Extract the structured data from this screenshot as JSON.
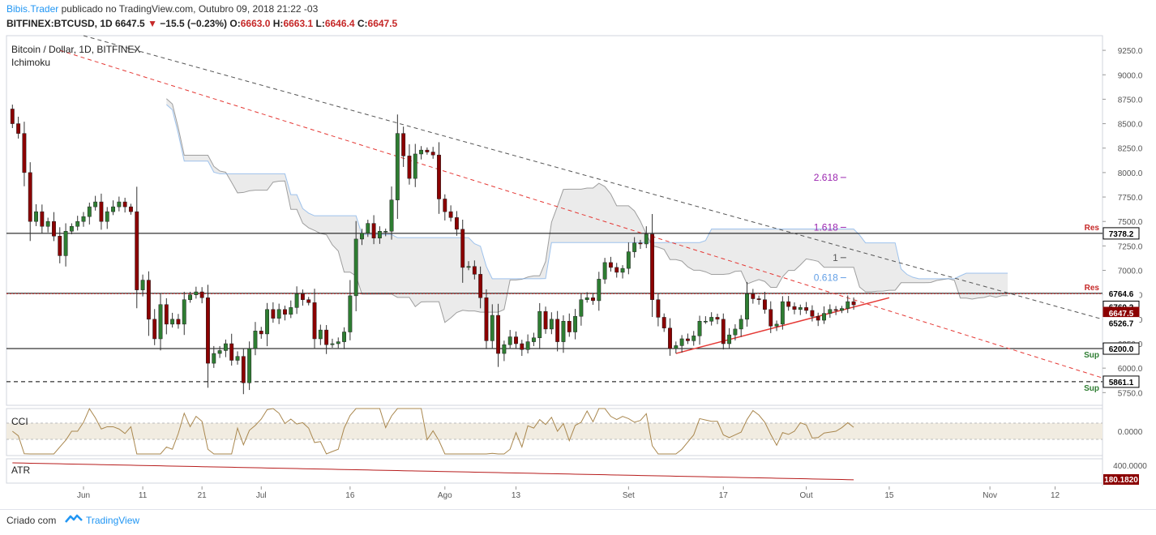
{
  "header": {
    "author": "Bibis.Trader",
    "published": "publicado no TradingView.com, Outubro 09, 2018 21:22 -03",
    "symbol": "BITFINEX:BTCUSD, 1D",
    "price": "6647.5",
    "change_arrow": "▼",
    "change": "−15.5 (−0.23%)",
    "o_label": "O:",
    "o": "6663.0",
    "h_label": "H:",
    "h": "6663.1",
    "l_label": "L:",
    "l": "6646.4",
    "c_label": "C:",
    "c": "6647.5"
  },
  "footer": {
    "created": "Criado com",
    "brand": "TradingView",
    "brand_icon": "tradingview-logo-icon"
  },
  "colors": {
    "up": "#2e7d32",
    "down": "#8b0000",
    "cloud": "#e6e6e6",
    "cloud_line": "#9e9e9e",
    "trend_red": "#e53935",
    "trend_gray": "#555555",
    "fib": "#9c27b0",
    "fib_blue": "#64a0e6",
    "cci": "#a9874e",
    "atr": "#b71c1c"
  },
  "chart_data": [
    {
      "type": "candlestick",
      "title": "Bitcoin / Dollar, 1D, BITFINEX",
      "subtitle": "Ichimoku",
      "ylim": [
        5620,
        9400
      ],
      "y_ticks": [
        5750,
        6000,
        6250,
        6500,
        6750,
        7000,
        7250,
        7500,
        7750,
        8000,
        8250,
        8500,
        8750,
        9000,
        9250
      ],
      "x_ticks": [
        "Jun",
        "11",
        "21",
        "Jul",
        "16",
        "Ago",
        "13",
        "Set",
        "17",
        "Out",
        "15",
        "Nov",
        "12"
      ],
      "x_tick_dates": [
        "2018-06-01",
        "2018-06-11",
        "2018-06-21",
        "2018-07-01",
        "2018-07-16",
        "2018-08-01",
        "2018-08-13",
        "2018-09-01",
        "2018-09-17",
        "2018-10-01",
        "2018-10-15",
        "2018-11-01",
        "2018-11-12"
      ],
      "date_range": [
        "2018-05-19",
        "2018-11-20"
      ],
      "closes": [
        [
          "2018-05-20",
          8500
        ],
        [
          "2018-05-21",
          8400
        ],
        [
          "2018-05-22",
          8000
        ],
        [
          "2018-05-23",
          7500
        ],
        [
          "2018-05-24",
          7600
        ],
        [
          "2018-05-25",
          7450
        ],
        [
          "2018-05-26",
          7500
        ],
        [
          "2018-05-27",
          7350
        ],
        [
          "2018-05-28",
          7150
        ],
        [
          "2018-05-29",
          7400
        ],
        [
          "2018-05-30",
          7450
        ],
        [
          "2018-05-31",
          7500
        ],
        [
          "2018-06-01",
          7550
        ],
        [
          "2018-06-02",
          7650
        ],
        [
          "2018-06-03",
          7700
        ],
        [
          "2018-06-04",
          7500
        ],
        [
          "2018-06-05",
          7600
        ],
        [
          "2018-06-06",
          7650
        ],
        [
          "2018-06-07",
          7700
        ],
        [
          "2018-06-08",
          7650
        ],
        [
          "2018-06-09",
          7600
        ],
        [
          "2018-06-10",
          6800
        ],
        [
          "2018-06-11",
          6900
        ],
        [
          "2018-06-12",
          6500
        ],
        [
          "2018-06-13",
          6300
        ],
        [
          "2018-06-14",
          6650
        ],
        [
          "2018-06-15",
          6450
        ],
        [
          "2018-06-16",
          6500
        ],
        [
          "2018-06-17",
          6450
        ],
        [
          "2018-06-18",
          6700
        ],
        [
          "2018-06-19",
          6750
        ],
        [
          "2018-06-20",
          6780
        ],
        [
          "2018-06-21",
          6720
        ],
        [
          "2018-06-22",
          6050
        ],
        [
          "2018-06-23",
          6150
        ],
        [
          "2018-06-24",
          6180
        ],
        [
          "2018-06-25",
          6250
        ],
        [
          "2018-06-26",
          6080
        ],
        [
          "2018-06-27",
          6120
        ],
        [
          "2018-06-28",
          5850
        ],
        [
          "2018-06-29",
          6200
        ],
        [
          "2018-06-30",
          6380
        ],
        [
          "2018-07-01",
          6350
        ],
        [
          "2018-07-02",
          6600
        ],
        [
          "2018-07-03",
          6510
        ],
        [
          "2018-07-04",
          6600
        ],
        [
          "2018-07-05",
          6550
        ],
        [
          "2018-07-06",
          6620
        ],
        [
          "2018-07-07",
          6760
        ],
        [
          "2018-07-08",
          6700
        ],
        [
          "2018-07-09",
          6670
        ],
        [
          "2018-07-10",
          6300
        ],
        [
          "2018-07-11",
          6390
        ],
        [
          "2018-07-12",
          6240
        ],
        [
          "2018-07-13",
          6250
        ],
        [
          "2018-07-14",
          6270
        ],
        [
          "2018-07-15",
          6370
        ],
        [
          "2018-07-16",
          6740
        ],
        [
          "2018-07-17",
          7320
        ],
        [
          "2018-07-18",
          7380
        ],
        [
          "2018-07-19",
          7480
        ],
        [
          "2018-07-20",
          7330
        ],
        [
          "2018-07-21",
          7400
        ],
        [
          "2018-07-22",
          7400
        ],
        [
          "2018-07-23",
          7720
        ],
        [
          "2018-07-24",
          8400
        ],
        [
          "2018-07-25",
          8170
        ],
        [
          "2018-07-26",
          7940
        ],
        [
          "2018-07-27",
          8190
        ],
        [
          "2018-07-28",
          8230
        ],
        [
          "2018-07-29",
          8210
        ],
        [
          "2018-07-30",
          8180
        ],
        [
          "2018-07-31",
          7730
        ],
        [
          "2018-08-01",
          7600
        ],
        [
          "2018-08-02",
          7540
        ],
        [
          "2018-08-03",
          7420
        ],
        [
          "2018-08-04",
          7030
        ],
        [
          "2018-08-05",
          7040
        ],
        [
          "2018-08-06",
          6960
        ],
        [
          "2018-08-07",
          6720
        ],
        [
          "2018-08-08",
          6280
        ],
        [
          "2018-08-09",
          6540
        ],
        [
          "2018-08-10",
          6150
        ],
        [
          "2018-08-11",
          6240
        ],
        [
          "2018-08-12",
          6320
        ],
        [
          "2018-08-13",
          6250
        ],
        [
          "2018-08-14",
          6190
        ],
        [
          "2018-08-15",
          6270
        ],
        [
          "2018-08-16",
          6310
        ],
        [
          "2018-08-17",
          6580
        ],
        [
          "2018-08-18",
          6400
        ],
        [
          "2018-08-19",
          6500
        ],
        [
          "2018-08-20",
          6270
        ],
        [
          "2018-08-21",
          6480
        ],
        [
          "2018-08-22",
          6370
        ],
        [
          "2018-08-23",
          6530
        ],
        [
          "2018-08-24",
          6700
        ],
        [
          "2018-08-25",
          6720
        ],
        [
          "2018-08-26",
          6690
        ],
        [
          "2018-08-27",
          6910
        ],
        [
          "2018-08-28",
          7080
        ],
        [
          "2018-08-29",
          7030
        ],
        [
          "2018-08-30",
          6980
        ],
        [
          "2018-08-31",
          7020
        ],
        [
          "2018-09-01",
          7190
        ],
        [
          "2018-09-02",
          7280
        ],
        [
          "2018-09-03",
          7270
        ],
        [
          "2018-09-04",
          7370
        ],
        [
          "2018-09-05",
          6700
        ],
        [
          "2018-09-06",
          6520
        ],
        [
          "2018-09-07",
          6410
        ],
        [
          "2018-09-08",
          6200
        ],
        [
          "2018-09-09",
          6230
        ],
        [
          "2018-09-10",
          6300
        ],
        [
          "2018-09-11",
          6280
        ],
        [
          "2018-09-12",
          6330
        ],
        [
          "2018-09-13",
          6480
        ],
        [
          "2018-09-14",
          6480
        ],
        [
          "2018-09-15",
          6520
        ],
        [
          "2018-09-16",
          6500
        ],
        [
          "2018-09-17",
          6250
        ],
        [
          "2018-09-18",
          6340
        ],
        [
          "2018-09-19",
          6400
        ],
        [
          "2018-09-20",
          6500
        ],
        [
          "2018-09-21",
          6760
        ],
        [
          "2018-09-22",
          6710
        ],
        [
          "2018-09-23",
          6700
        ],
        [
          "2018-09-24",
          6600
        ],
        [
          "2018-09-25",
          6430
        ],
        [
          "2018-09-26",
          6450
        ],
        [
          "2018-09-27",
          6680
        ],
        [
          "2018-09-28",
          6630
        ],
        [
          "2018-09-29",
          6600
        ],
        [
          "2018-09-30",
          6620
        ],
        [
          "2018-10-01",
          6590
        ],
        [
          "2018-10-02",
          6530
        ],
        [
          "2018-10-03",
          6490
        ],
        [
          "2018-10-04",
          6560
        ],
        [
          "2018-10-05",
          6600
        ],
        [
          "2018-10-06",
          6590
        ],
        [
          "2018-10-07",
          6610
        ],
        [
          "2018-10-08",
          6680
        ],
        [
          "2018-10-09",
          6647.5
        ]
      ],
      "horizontal_levels": [
        {
          "value": 7378.2,
          "label": "Res",
          "style": "solid"
        },
        {
          "value": 6764.6,
          "label": "Res",
          "style": "solid"
        },
        {
          "value": 6200.0,
          "label": "Sup",
          "style": "solid"
        },
        {
          "value": 5861.1,
          "label": "Sup",
          "style": "dashed"
        }
      ],
      "price_tags": [
        "7378.2",
        "6764.6",
        "6760.2",
        "6647.5",
        "6526.7",
        "6200.0",
        "5861.1"
      ],
      "fib_levels": [
        {
          "label": "2.618",
          "value": 7950
        },
        {
          "label": "1.618",
          "value": 7440
        },
        {
          "label": "1",
          "value": 7130
        },
        {
          "label": "0.618",
          "value": 6925
        }
      ]
    },
    {
      "type": "line",
      "title": "CCI",
      "y_ticks": [
        "0.0000"
      ],
      "band": "-100 to 100"
    },
    {
      "type": "line",
      "title": "ATR",
      "y_ticks": [
        "400.0000"
      ],
      "last_value": "180.1820"
    }
  ]
}
